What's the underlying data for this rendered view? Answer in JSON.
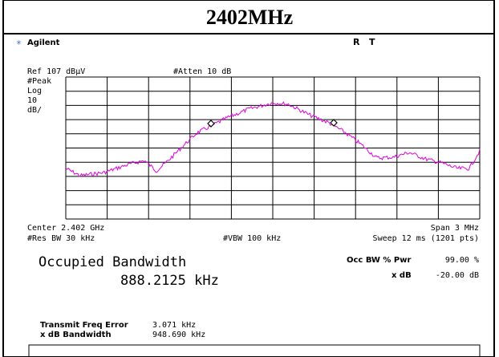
{
  "header": {
    "title": "2402MHz"
  },
  "instrument": {
    "brand": "Agilent",
    "status": "R   T"
  },
  "settings": {
    "ref": "Ref 107 dBµV",
    "atten": "#Atten 10 dB",
    "detector": "#Peak",
    "scale": [
      "Log",
      "10",
      "dB/"
    ],
    "center": "Center 2.402 GHz",
    "span": "Span 3 MHz",
    "rbw": "#Res BW 30 kHz",
    "vbw": "#VBW 100 kHz",
    "sweep": "Sweep 12 ms (1201 pts)"
  },
  "result": {
    "label": "Occupied Bandwidth",
    "value": "888.2125 kHz",
    "occ_label": "Occ BW % Pwr",
    "occ_value": "99.00 %",
    "xdb_label": "x dB",
    "xdb_value": "-20.00 dB",
    "tfe_label": "Transmit Freq Error",
    "tfe_value": "3.071 kHz",
    "xbw_label": "x dB Bandwidth",
    "xbw_value": "948.690 kHz"
  }
}
